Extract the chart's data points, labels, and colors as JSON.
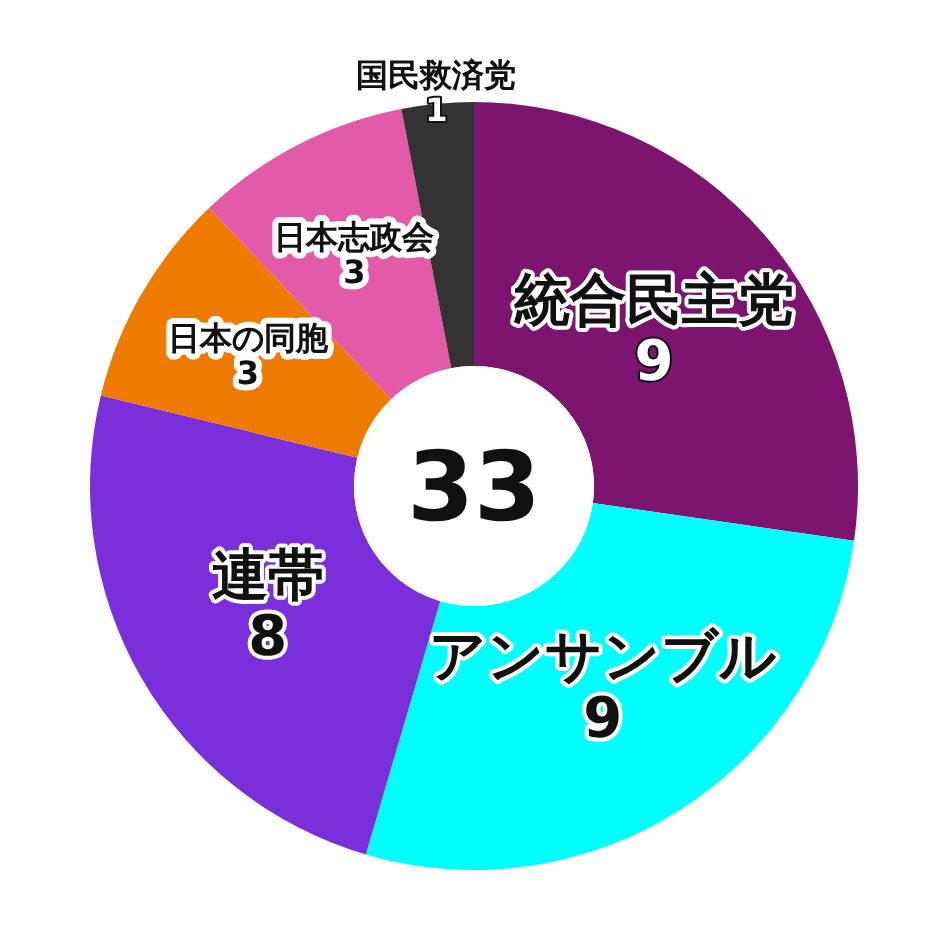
{
  "chart_data": {
    "type": "donut",
    "categories": [
      "統合民主党",
      "アンサンブル",
      "連帯",
      "日本の同胞",
      "日本志政会",
      "国民救済党"
    ],
    "values": [
      9,
      9,
      8,
      3,
      3,
      1
    ],
    "colors": [
      "#7d1570",
      "#00ffff",
      "#7a2fdb",
      "#ef7a00",
      "#e25aa8",
      "#333333"
    ],
    "data_labels": true,
    "annotations": [
      "33"
    ]
  }
}
